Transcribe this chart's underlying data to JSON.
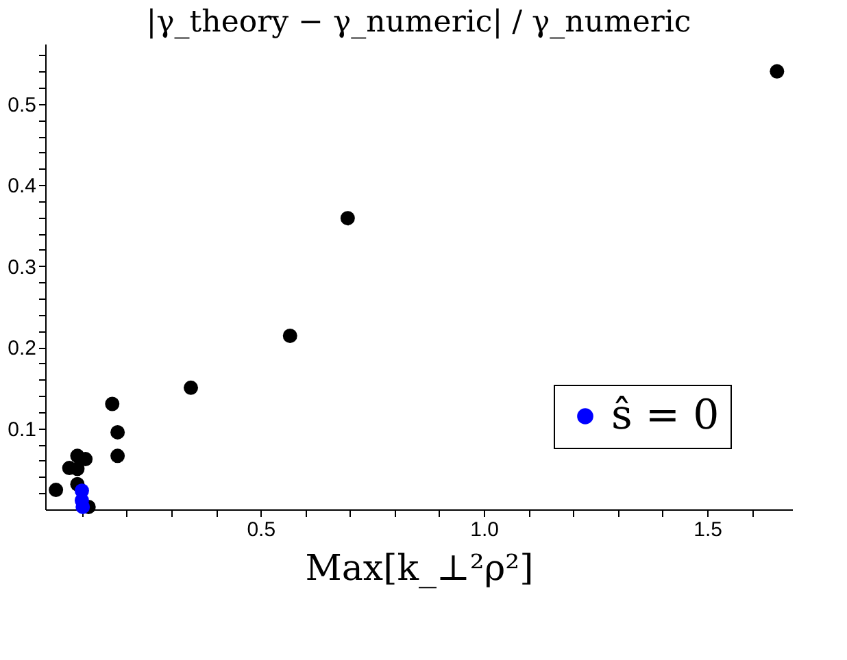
{
  "chart_data": {
    "type": "scatter",
    "title": "|γ_theory − γ_numeric| / γ_numeric",
    "xlabel": "Max[k_⊥²ρ²]",
    "xlim": [
      0.018,
      1.69
    ],
    "ylim": [
      0,
      0.574
    ],
    "xticks": [
      {
        "value": 0.1,
        "label": null
      },
      {
        "value": 0.2,
        "label": null
      },
      {
        "value": 0.3,
        "label": null
      },
      {
        "value": 0.4,
        "label": null
      },
      {
        "value": 0.5,
        "label": "0.5"
      },
      {
        "value": 0.6,
        "label": null
      },
      {
        "value": 0.7,
        "label": null
      },
      {
        "value": 0.8,
        "label": null
      },
      {
        "value": 0.9,
        "label": null
      },
      {
        "value": 1.0,
        "label": "1.0"
      },
      {
        "value": 1.1,
        "label": null
      },
      {
        "value": 1.2,
        "label": null
      },
      {
        "value": 1.3,
        "label": null
      },
      {
        "value": 1.4,
        "label": null
      },
      {
        "value": 1.5,
        "label": "1.5"
      },
      {
        "value": 1.6,
        "label": null
      }
    ],
    "yticks": [
      {
        "value": 0.02,
        "label": null
      },
      {
        "value": 0.04,
        "label": null
      },
      {
        "value": 0.06,
        "label": null
      },
      {
        "value": 0.08,
        "label": null
      },
      0.1,
      {
        "value": 0.12,
        "label": null
      },
      {
        "value": 0.14,
        "label": null
      },
      {
        "value": 0.16,
        "label": null
      },
      {
        "value": 0.18,
        "label": null
      },
      0.2,
      {
        "value": 0.22,
        "label": null
      },
      {
        "value": 0.24,
        "label": null
      },
      {
        "value": 0.26,
        "label": null
      },
      {
        "value": 0.28,
        "label": null
      },
      0.3,
      {
        "value": 0.32,
        "label": null
      },
      {
        "value": 0.34,
        "label": null
      },
      {
        "value": 0.36,
        "label": null
      },
      {
        "value": 0.38,
        "label": null
      },
      0.4,
      {
        "value": 0.42,
        "label": null
      },
      {
        "value": 0.44,
        "label": null
      },
      {
        "value": 0.46,
        "label": null
      },
      {
        "value": 0.48,
        "label": null
      },
      0.5,
      {
        "value": 0.52,
        "label": null
      },
      {
        "value": 0.54,
        "label": null
      },
      {
        "value": 0.56,
        "label": null
      }
    ],
    "marker": "circle",
    "grid": false,
    "legend": "bottom right",
    "series": [
      {
        "color": "#000000",
        "x": [
          0.042,
          0.072,
          0.09,
          0.09,
          0.09,
          0.108,
          0.115,
          0.168,
          0.18,
          0.18,
          0.344,
          0.566,
          0.695,
          1.656
        ],
        "values": [
          0.024,
          0.051,
          0.066,
          0.05,
          0.031,
          0.062,
          0.003,
          0.13,
          0.095,
          0.066,
          0.15,
          0.214,
          0.359,
          0.54
        ]
      },
      {
        "name": "ŝ = 0",
        "color": "#0000ff",
        "x": [
          0.1,
          0.1,
          0.102
        ],
        "values": [
          0.023,
          0.011,
          0.003
        ]
      }
    ]
  }
}
